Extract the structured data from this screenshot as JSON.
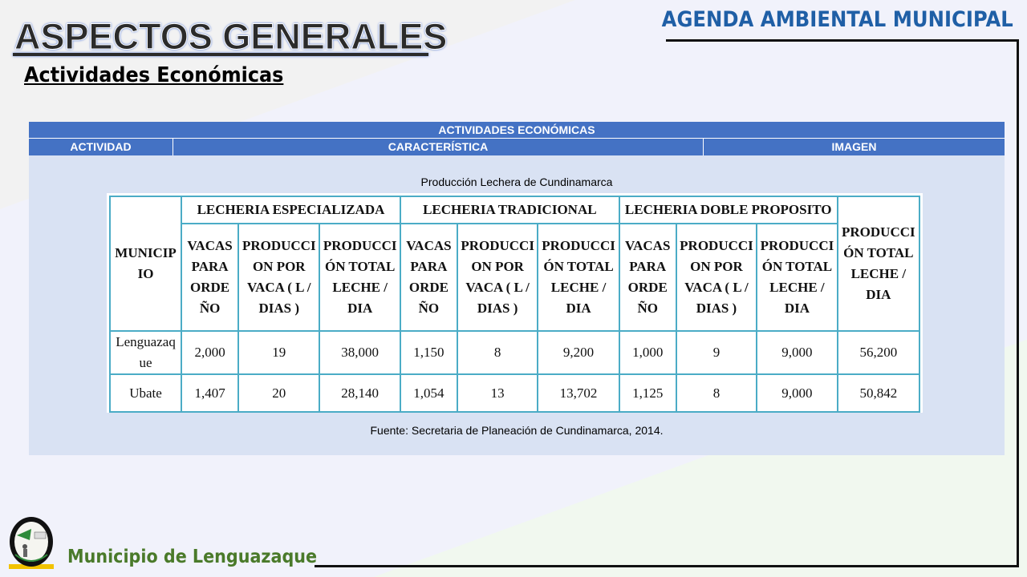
{
  "header": {
    "title": "ASPECTOS GENERALES",
    "subtitle": "Actividades Económicas",
    "brand": "AGENDA AMBIENTAL MUNICIPAL"
  },
  "footer": {
    "municipality": "Municipio de Lenguazaque",
    "seal_text": "MUNICIPIO DE LENGUAZAQUE"
  },
  "outer_table": {
    "title": "ACTIVIDADES ECONÓMICAS",
    "columns": [
      "ACTIVIDAD",
      "CARACTERÍSTICA",
      "IMAGEN"
    ],
    "image_caption": "Producción Lechera de Cundinamarca",
    "source": "Fuente: Secretaria de Planeación de Cundinamarca, 2014."
  },
  "milk_table": {
    "municipio_header": "MUNICIP IO",
    "groups": [
      "LECHERIA ESPECIALIZADA",
      "LECHERIA TRADICIONAL",
      "LECHERIA DOBLE PROPOSITO"
    ],
    "sub_headers": [
      "VACAS PARA ORDE ÑO",
      "PRODUCCI ON POR VACA ( L / DIAS )",
      "PRODUCCI ÓN TOTAL LECHE / DIA"
    ],
    "total_header": "PRODUCCI ÓN TOTAL LECHE / DIA",
    "rows": [
      {
        "municipio": "Lenguazaq ue",
        "values": [
          "2,000",
          "19",
          "38,000",
          "1,150",
          "8",
          "9,200",
          "1,000",
          "9",
          "9,000",
          "56,200"
        ]
      },
      {
        "municipio": "Ubate",
        "values": [
          "1,407",
          "20",
          "28,140",
          "1,054",
          "13",
          "13,702",
          "1,125",
          "8",
          "9,000",
          "50,842"
        ]
      }
    ]
  },
  "colors": {
    "header_blue": "#4472c4",
    "body_blue": "#d9e2f3",
    "table_border": "#4bacc6",
    "brand": "#1f5fa6",
    "footer_green": "#4a7a2a"
  }
}
